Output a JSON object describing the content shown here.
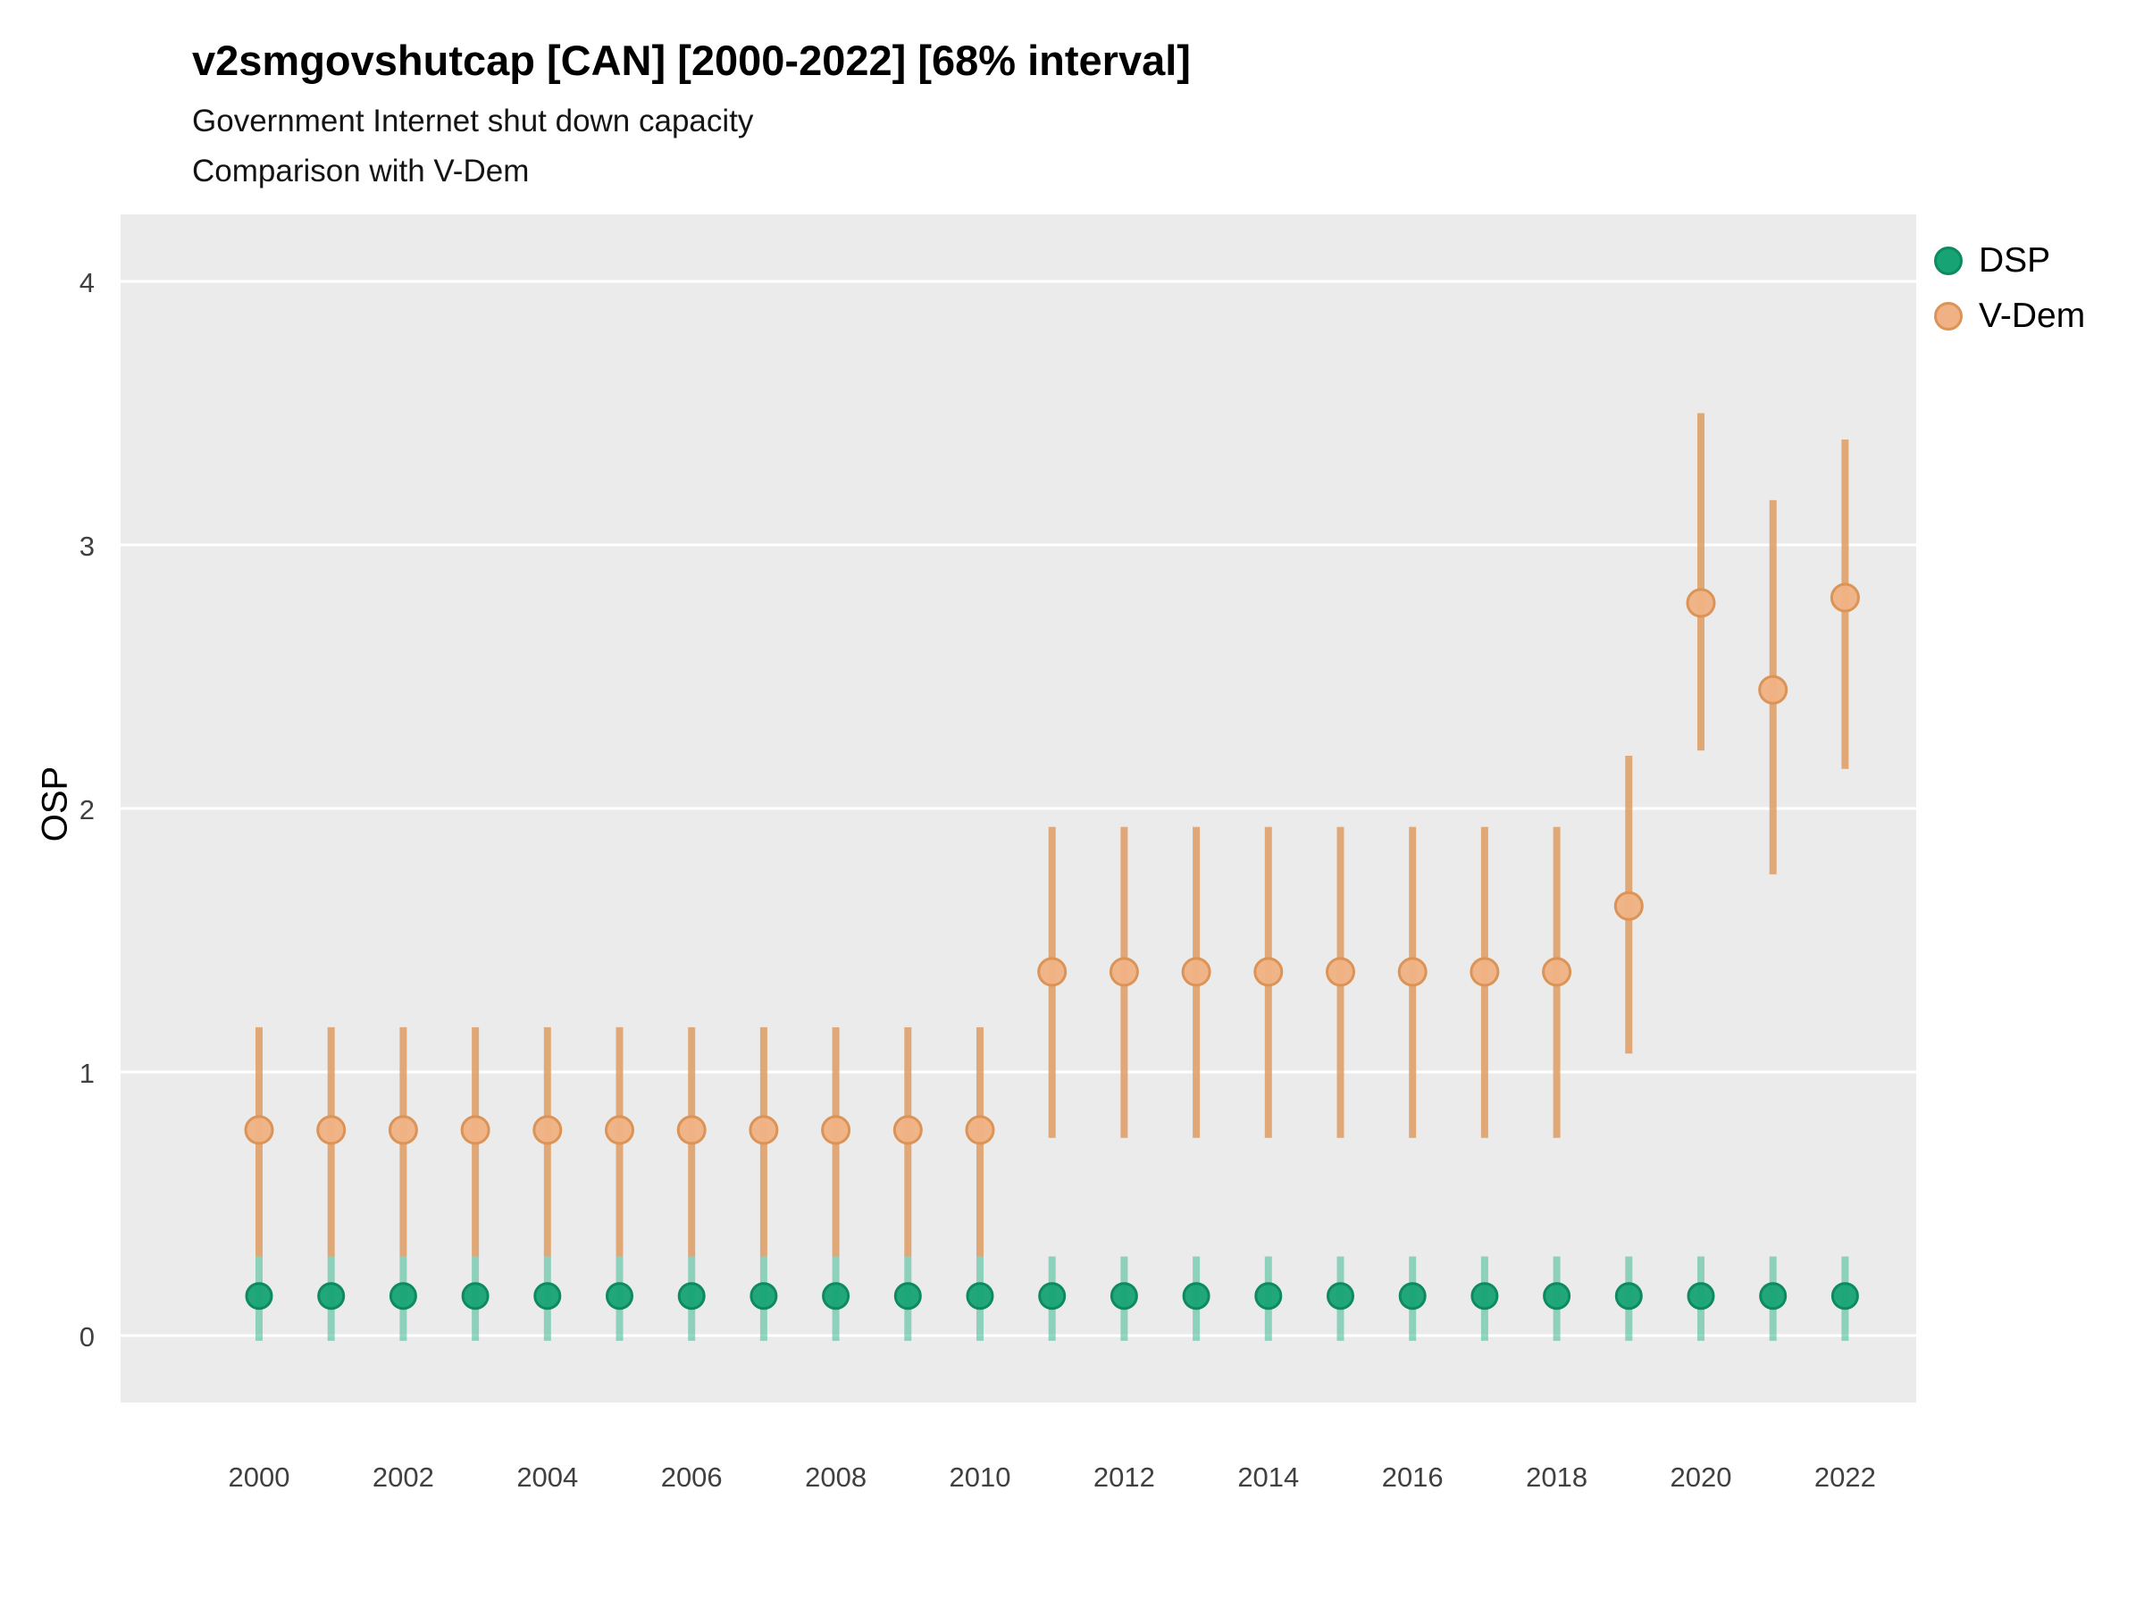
{
  "title": "v2smgovshutcap [CAN] [2000-2022] [68% interval]",
  "subtitle_line1": "Government Internet shut down capacity",
  "subtitle_line2": "Comparison with V-Dem",
  "ylabel": "OSP",
  "legend": {
    "items": [
      {
        "label": "DSP",
        "fill": "#17A374",
        "stroke": "#0E8A61"
      },
      {
        "label": "V-Dem",
        "fill": "#F0B184",
        "stroke": "#DB9356"
      }
    ]
  },
  "chart_data": {
    "type": "scatter",
    "title": "v2smgovshutcap [CAN] [2000-2022] [68% interval]",
    "subtitle": [
      "Government Internet shut down capacity",
      "Comparison with V-Dem"
    ],
    "xlabel": "",
    "ylabel": "OSP",
    "interval": "68%",
    "country": "CAN",
    "panel_bg": "#EBEBEB",
    "grid_color": "#FFFFFF",
    "tick_label_color": "#404040",
    "ylim": [
      -0.25,
      4.25
    ],
    "yticks": [
      0,
      1,
      2,
      3,
      4
    ],
    "xticks": [
      2000,
      2002,
      2004,
      2006,
      2008,
      2010,
      2012,
      2014,
      2016,
      2018,
      2020,
      2022
    ],
    "legend_position": "right",
    "point_format": "[year, interval_low, estimate, interval_high]",
    "series": [
      {
        "name": "V-Dem",
        "point_fill": "#F0B184",
        "point_stroke": "#DB9356",
        "line_color": "#DF9C63",
        "line_opacity": 0.85,
        "points": [
          [
            2000,
            0.3,
            0.78,
            1.17
          ],
          [
            2001,
            0.3,
            0.78,
            1.17
          ],
          [
            2002,
            0.3,
            0.78,
            1.17
          ],
          [
            2003,
            0.3,
            0.78,
            1.17
          ],
          [
            2004,
            0.3,
            0.78,
            1.17
          ],
          [
            2005,
            0.3,
            0.78,
            1.17
          ],
          [
            2006,
            0.3,
            0.78,
            1.17
          ],
          [
            2007,
            0.3,
            0.78,
            1.17
          ],
          [
            2008,
            0.3,
            0.78,
            1.17
          ],
          [
            2009,
            0.3,
            0.78,
            1.17
          ],
          [
            2010,
            0.3,
            0.78,
            1.17
          ],
          [
            2011,
            0.75,
            1.38,
            1.93
          ],
          [
            2012,
            0.75,
            1.38,
            1.93
          ],
          [
            2013,
            0.75,
            1.38,
            1.93
          ],
          [
            2014,
            0.75,
            1.38,
            1.93
          ],
          [
            2015,
            0.75,
            1.38,
            1.93
          ],
          [
            2016,
            0.75,
            1.38,
            1.93
          ],
          [
            2017,
            0.75,
            1.38,
            1.93
          ],
          [
            2018,
            0.75,
            1.38,
            1.93
          ],
          [
            2019,
            1.07,
            1.63,
            2.2
          ],
          [
            2020,
            2.22,
            2.78,
            3.5
          ],
          [
            2021,
            1.75,
            2.45,
            3.17
          ],
          [
            2022,
            2.15,
            2.8,
            3.4
          ]
        ]
      },
      {
        "name": "DSP",
        "point_fill": "#17A374",
        "point_stroke": "#0E8A61",
        "line_color": "#4FBF9C",
        "line_opacity": 0.6,
        "points": [
          [
            2000,
            -0.02,
            0.15,
            0.3
          ],
          [
            2001,
            -0.02,
            0.15,
            0.3
          ],
          [
            2002,
            -0.02,
            0.15,
            0.3
          ],
          [
            2003,
            -0.02,
            0.15,
            0.3
          ],
          [
            2004,
            -0.02,
            0.15,
            0.3
          ],
          [
            2005,
            -0.02,
            0.15,
            0.3
          ],
          [
            2006,
            -0.02,
            0.15,
            0.3
          ],
          [
            2007,
            -0.02,
            0.15,
            0.3
          ],
          [
            2008,
            -0.02,
            0.15,
            0.3
          ],
          [
            2009,
            -0.02,
            0.15,
            0.3
          ],
          [
            2010,
            -0.02,
            0.15,
            0.3
          ],
          [
            2011,
            -0.02,
            0.15,
            0.3
          ],
          [
            2012,
            -0.02,
            0.15,
            0.3
          ],
          [
            2013,
            -0.02,
            0.15,
            0.3
          ],
          [
            2014,
            -0.02,
            0.15,
            0.3
          ],
          [
            2015,
            -0.02,
            0.15,
            0.3
          ],
          [
            2016,
            -0.02,
            0.15,
            0.3
          ],
          [
            2017,
            -0.02,
            0.15,
            0.3
          ],
          [
            2018,
            -0.02,
            0.15,
            0.3
          ],
          [
            2019,
            -0.02,
            0.15,
            0.3
          ],
          [
            2020,
            -0.02,
            0.15,
            0.3
          ],
          [
            2021,
            -0.02,
            0.15,
            0.3
          ],
          [
            2022,
            -0.02,
            0.15,
            0.3
          ]
        ]
      }
    ]
  }
}
